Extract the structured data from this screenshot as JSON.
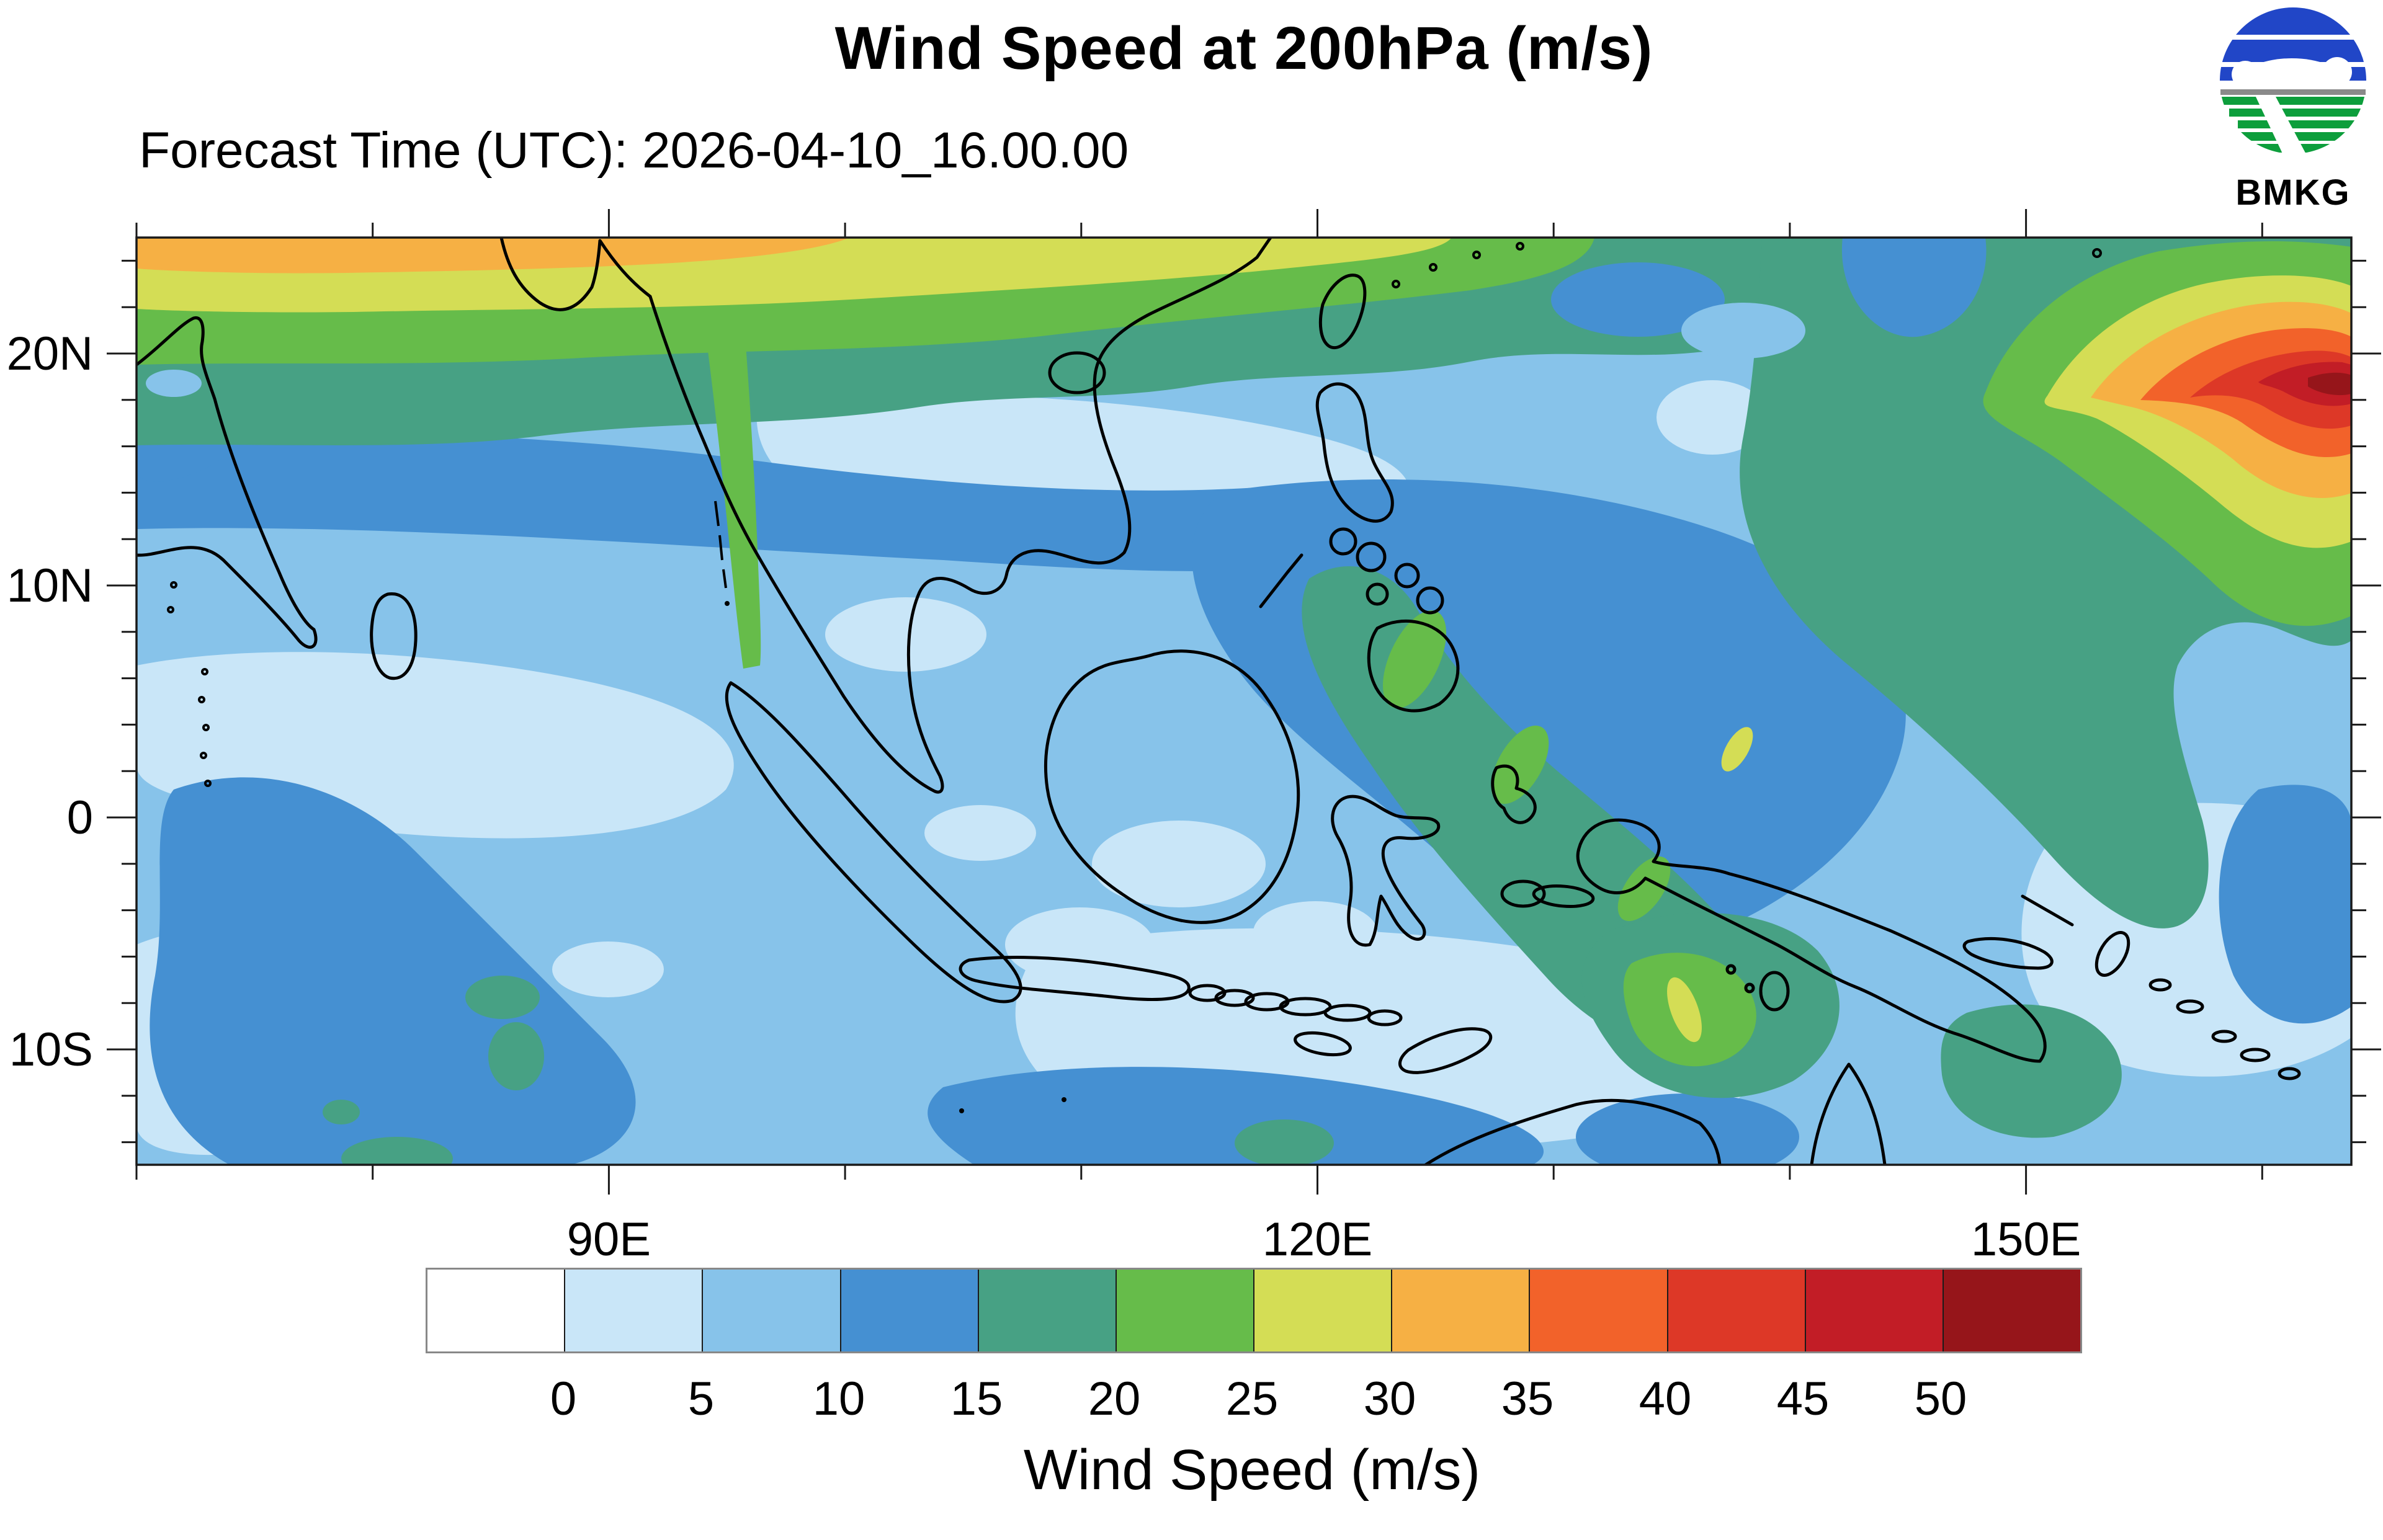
{
  "header": {
    "title": "Wind Speed at 200hPa (m/s)",
    "subtitle": "Forecast Time (UTC): 2026-04-10_16.00.00"
  },
  "logo": {
    "label": "BMKG",
    "blue": "#2146C7",
    "green": "#0D9E3C",
    "gray": "#8A8A8A"
  },
  "map": {
    "frame_color": "#1a1a1a",
    "axes": {
      "lat_major": [
        {
          "deg": 20,
          "label": "20N"
        },
        {
          "deg": 10,
          "label": "10N"
        },
        {
          "deg": 0,
          "label": "0"
        },
        {
          "deg": -10,
          "label": "10S"
        }
      ],
      "lat_minor": [
        24,
        22,
        18,
        16,
        14,
        12,
        8,
        6,
        4,
        2,
        -2,
        -4,
        -6,
        -8,
        -12,
        -14
      ],
      "lon_major": [
        {
          "deg": 90,
          "label": "90E"
        },
        {
          "deg": 120,
          "label": "120E"
        },
        {
          "deg": 150,
          "label": "150E"
        }
      ],
      "lon_minor": [
        70,
        80,
        100,
        110,
        130,
        140,
        160
      ]
    }
  },
  "colorbar": {
    "title": "Wind Speed (m/s)",
    "labels": [
      "0",
      "5",
      "10",
      "15",
      "20",
      "25",
      "30",
      "35",
      "40",
      "45",
      "50"
    ],
    "colors": [
      "#FFFFFF",
      "#C9E6F8",
      "#87C3EA",
      "#4590D2",
      "#47A184",
      "#66BC4A",
      "#D4DD55",
      "#F6B044",
      "#F2622A",
      "#DD3827",
      "#C21D26",
      "#96151A"
    ]
  },
  "chart_data": {
    "type": "heatmap",
    "title": "Wind Speed at 200hPa (m/s)",
    "subtitle": "Forecast Time (UTC): 2026-04-10_16.00.00",
    "units": "m/s",
    "source_logo": "BMKG",
    "legend_title": "Wind Speed (m/s)",
    "contour_levels": [
      0,
      5,
      10,
      15,
      20,
      25,
      30,
      35,
      40,
      45,
      50
    ],
    "palette": [
      "#FFFFFF",
      "#C9E6F8",
      "#87C3EA",
      "#4590D2",
      "#47A184",
      "#66BC4A",
      "#D4DD55",
      "#F6B044",
      "#F2622A",
      "#DD3827",
      "#C21D26",
      "#96151A"
    ],
    "lon_range": [
      70,
      164
    ],
    "lat_range": [
      -15,
      25
    ],
    "xlabel_ticks": [
      "90E",
      "120E",
      "150E"
    ],
    "ylabel_ticks": [
      "20N",
      "10N",
      "0",
      "10S"
    ],
    "grid_lons": [
      70,
      80,
      90,
      100,
      110,
      120,
      130,
      140,
      150,
      160
    ],
    "grid_lats": [
      25,
      20,
      15,
      10,
      5,
      0,
      -5,
      -10,
      -15
    ],
    "values_by_lat_row": [
      [
        37,
        36,
        34,
        25,
        22,
        20,
        17,
        16,
        15,
        13
      ],
      [
        23,
        22,
        17,
        15,
        12,
        10,
        9,
        14,
        30,
        44
      ],
      [
        13,
        14,
        15,
        12,
        9,
        8,
        7,
        13,
        30,
        40
      ],
      [
        12,
        13,
        12,
        9,
        12,
        16,
        11,
        12,
        22,
        30
      ],
      [
        10,
        9,
        8,
        6,
        13,
        17,
        12,
        9,
        14,
        18
      ],
      [
        8,
        7,
        6,
        5,
        8,
        13,
        16,
        10,
        8,
        9
      ],
      [
        9,
        11,
        9,
        4,
        3,
        6,
        13,
        18,
        10,
        7
      ],
      [
        12,
        13,
        10,
        5,
        4,
        6,
        9,
        15,
        12,
        8
      ],
      [
        9,
        10,
        12,
        7,
        6,
        8,
        10,
        12,
        9,
        7
      ]
    ],
    "notable_features": [
      "Subtropical jet band (25-40 m/s) along northern edge 70E-100E",
      "Strong jet maximum >45 m/s near 155-164E, 17-19N at upper right",
      "15-20 m/s band from the Philippines southeast toward New Guinea",
      "Light winds (0-10 m/s) over most of the Indonesian maritime continent"
    ]
  }
}
